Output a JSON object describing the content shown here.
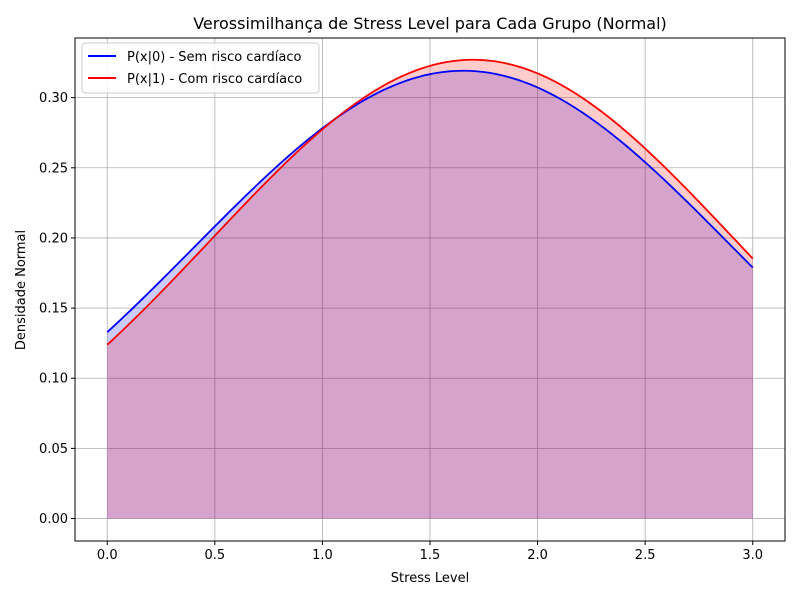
{
  "chart_data": {
    "type": "area",
    "title": "Verossimilhança de Stress Level para Cada Grupo (Normal)",
    "xlabel": "Stress Level",
    "ylabel": "Densidade Normal",
    "xlim": [
      -0.15,
      3.15
    ],
    "ylim": [
      -0.016,
      0.3425
    ],
    "xticks": [
      0.0,
      0.5,
      1.0,
      1.5,
      2.0,
      2.5,
      3.0
    ],
    "xtick_labels": [
      "0.0",
      "0.5",
      "1.0",
      "1.5",
      "2.0",
      "2.5",
      "3.0"
    ],
    "yticks": [
      0.0,
      0.05,
      0.1,
      0.15,
      0.2,
      0.25,
      0.3
    ],
    "ytick_labels": [
      "0.00",
      "0.05",
      "0.10",
      "0.15",
      "0.20",
      "0.25",
      "0.30"
    ],
    "grid": true,
    "legend_position": "top-left",
    "series": [
      {
        "name": "P(x|0) - Sem risco cardíaco",
        "color": "#0000ff",
        "fill_color": "#0000ff",
        "fill_alpha": 0.2,
        "distribution": "normal",
        "mean": 1.655,
        "sd": 1.25,
        "x": [
          0.0,
          0.25,
          0.5,
          0.75,
          1.0,
          1.25,
          1.5,
          1.75,
          2.0,
          2.25,
          2.5,
          2.75,
          3.0
        ],
        "values": [
          0.133,
          0.168,
          0.208,
          0.246,
          0.279,
          0.305,
          0.319,
          0.318,
          0.307,
          0.284,
          0.253,
          0.216,
          0.178
        ]
      },
      {
        "name": "P(x|1) - Com risco cardíaco",
        "color": "#ff0000",
        "fill_color": "#ff0000",
        "fill_alpha": 0.2,
        "distribution": "normal",
        "mean": 1.7,
        "sd": 1.22,
        "x": [
          0.0,
          0.25,
          0.5,
          0.75,
          1.0,
          1.25,
          1.5,
          1.75,
          2.0,
          2.25,
          2.5,
          2.75,
          3.0
        ],
        "values": [
          0.123,
          0.161,
          0.202,
          0.241,
          0.277,
          0.306,
          0.323,
          0.327,
          0.318,
          0.295,
          0.263,
          0.224,
          0.185
        ]
      }
    ]
  }
}
